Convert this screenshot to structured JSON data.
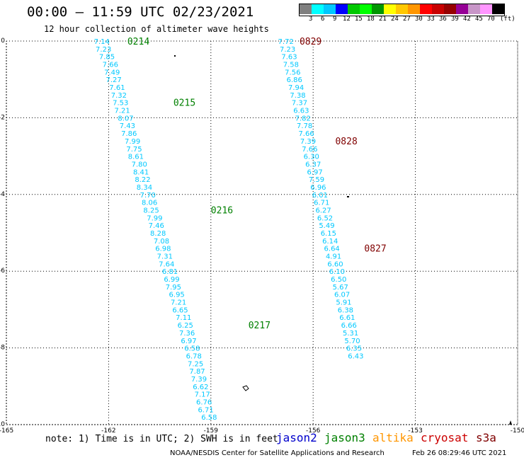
{
  "header": {
    "title": "00:00 – 11:59 UTC 02/23/2021",
    "subtitle": "12 hour collection of altimeter wave heights"
  },
  "scale": {
    "unit": "(ft)",
    "labels": [
      "3",
      "6",
      "9",
      "12",
      "15",
      "18",
      "21",
      "24",
      "27",
      "30",
      "33",
      "36",
      "39",
      "42",
      "45",
      "70"
    ],
    "colors": [
      "#808080",
      "#00ffff",
      "#00c8ff",
      "#0000ff",
      "#00c800",
      "#00ff00",
      "#009600",
      "#ffff00",
      "#ffc800",
      "#ff9600",
      "#ff0000",
      "#c80000",
      "#960000",
      "#960096",
      "#c896c8",
      "#ff96ff",
      "#000000"
    ]
  },
  "axes": {
    "x_ticks": [
      "-165",
      "-162",
      "-159",
      "-156",
      "-153",
      "-150"
    ],
    "y_ticks": [
      "0",
      "-2",
      "-4",
      "-6",
      "-8",
      "-10"
    ]
  },
  "chart_data": {
    "type": "map-track",
    "x_range": [
      -165,
      -150
    ],
    "y_range": [
      -10,
      0
    ],
    "track_color": "#00c8ff",
    "tracks": [
      {
        "label_color": "#008000",
        "points": [
          {
            "lon": -162.2,
            "lat": 0.0,
            "v": "7.14"
          },
          {
            "lon": -162.15,
            "lat": -0.2,
            "v": "7.23"
          },
          {
            "lon": -162.05,
            "lat": -0.4,
            "v": "7.85"
          },
          {
            "lon": -161.95,
            "lat": -0.6,
            "v": "7.66"
          },
          {
            "lon": -161.9,
            "lat": -0.8,
            "v": "7.49"
          },
          {
            "lon": -161.85,
            "lat": -1.0,
            "v": "7.27"
          },
          {
            "lon": -161.75,
            "lat": -1.2,
            "v": "7.61"
          },
          {
            "lon": -161.7,
            "lat": -1.4,
            "v": "7.32"
          },
          {
            "lon": -161.65,
            "lat": -1.6,
            "v": "7.53"
          },
          {
            "lon": -161.6,
            "lat": -1.8,
            "v": "7.21"
          },
          {
            "lon": -161.5,
            "lat": -2.0,
            "v": "8.07"
          },
          {
            "lon": -161.45,
            "lat": -2.2,
            "v": "7.43"
          },
          {
            "lon": -161.4,
            "lat": -2.4,
            "v": "7.86"
          },
          {
            "lon": -161.3,
            "lat": -2.6,
            "v": "7.99"
          },
          {
            "lon": -161.25,
            "lat": -2.8,
            "v": "7.75"
          },
          {
            "lon": -161.2,
            "lat": -3.0,
            "v": "8.61"
          },
          {
            "lon": -161.1,
            "lat": -3.2,
            "v": "7.80"
          },
          {
            "lon": -161.05,
            "lat": -3.4,
            "v": "8.41"
          },
          {
            "lon": -161.0,
            "lat": -3.6,
            "v": "8.22"
          },
          {
            "lon": -160.95,
            "lat": -3.8,
            "v": "8.34"
          },
          {
            "lon": -160.85,
            "lat": -4.0,
            "v": "7.70"
          },
          {
            "lon": -160.8,
            "lat": -4.2,
            "v": "8.06"
          },
          {
            "lon": -160.75,
            "lat": -4.4,
            "v": "8.25"
          },
          {
            "lon": -160.65,
            "lat": -4.6,
            "v": "7.99"
          },
          {
            "lon": -160.6,
            "lat": -4.8,
            "v": "7.46"
          },
          {
            "lon": -160.55,
            "lat": -5.0,
            "v": "8.28"
          },
          {
            "lon": -160.45,
            "lat": -5.2,
            "v": "7.08"
          },
          {
            "lon": -160.4,
            "lat": -5.4,
            "v": "6.98"
          },
          {
            "lon": -160.35,
            "lat": -5.6,
            "v": "7.31"
          },
          {
            "lon": -160.3,
            "lat": -5.8,
            "v": "7.64"
          },
          {
            "lon": -160.2,
            "lat": -6.0,
            "v": "6.81"
          },
          {
            "lon": -160.15,
            "lat": -6.2,
            "v": "6.99"
          },
          {
            "lon": -160.1,
            "lat": -6.4,
            "v": "7.95"
          },
          {
            "lon": -160.0,
            "lat": -6.6,
            "v": "6.95"
          },
          {
            "lon": -159.95,
            "lat": -6.8,
            "v": "7.21"
          },
          {
            "lon": -159.9,
            "lat": -7.0,
            "v": "6.65"
          },
          {
            "lon": -159.8,
            "lat": -7.2,
            "v": "7.11"
          },
          {
            "lon": -159.75,
            "lat": -7.4,
            "v": "6.25"
          },
          {
            "lon": -159.7,
            "lat": -7.6,
            "v": "7.36"
          },
          {
            "lon": -159.65,
            "lat": -7.8,
            "v": "6.97"
          },
          {
            "lon": -159.55,
            "lat": -8.0,
            "v": "6.58"
          },
          {
            "lon": -159.5,
            "lat": -8.2,
            "v": "6.78"
          },
          {
            "lon": -159.45,
            "lat": -8.4,
            "v": "7.25"
          },
          {
            "lon": -159.4,
            "lat": -8.6,
            "v": "7.87"
          },
          {
            "lon": -159.35,
            "lat": -8.8,
            "v": "7.39"
          },
          {
            "lon": -159.3,
            "lat": -9.0,
            "v": "6.62"
          },
          {
            "lon": -159.25,
            "lat": -9.2,
            "v": "7.17"
          },
          {
            "lon": -159.2,
            "lat": -9.4,
            "v": "6.76"
          },
          {
            "lon": -159.15,
            "lat": -9.6,
            "v": "6.71"
          },
          {
            "lon": -159.05,
            "lat": -9.8,
            "v": "6.58"
          }
        ],
        "times": [
          {
            "lon": -161.45,
            "lat": 0.0,
            "t": "0214"
          },
          {
            "lon": -160.1,
            "lat": -1.6,
            "t": "0215"
          },
          {
            "lon": -159.0,
            "lat": -4.4,
            "t": "0216"
          },
          {
            "lon": -157.9,
            "lat": -7.4,
            "t": "0217"
          }
        ]
      },
      {
        "label_color": "#800000",
        "points": [
          {
            "lon": -156.8,
            "lat": 0.0,
            "v": "7.72"
          },
          {
            "lon": -156.75,
            "lat": -0.2,
            "v": "7.23"
          },
          {
            "lon": -156.7,
            "lat": -0.4,
            "v": "7.63"
          },
          {
            "lon": -156.65,
            "lat": -0.6,
            "v": "7.58"
          },
          {
            "lon": -156.6,
            "lat": -0.8,
            "v": "7.56"
          },
          {
            "lon": -156.55,
            "lat": -1.0,
            "v": "6.86"
          },
          {
            "lon": -156.5,
            "lat": -1.2,
            "v": "7.94"
          },
          {
            "lon": -156.45,
            "lat": -1.4,
            "v": "7.38"
          },
          {
            "lon": -156.4,
            "lat": -1.6,
            "v": "7.37"
          },
          {
            "lon": -156.35,
            "lat": -1.8,
            "v": "6.63"
          },
          {
            "lon": -156.3,
            "lat": -2.0,
            "v": "7.82"
          },
          {
            "lon": -156.25,
            "lat": -2.2,
            "v": "7.78"
          },
          {
            "lon": -156.2,
            "lat": -2.4,
            "v": "7.66"
          },
          {
            "lon": -156.15,
            "lat": -2.6,
            "v": "7.39"
          },
          {
            "lon": -156.1,
            "lat": -2.8,
            "v": "7.66"
          },
          {
            "lon": -156.05,
            "lat": -3.0,
            "v": "6.30"
          },
          {
            "lon": -156.0,
            "lat": -3.2,
            "v": "6.37"
          },
          {
            "lon": -155.95,
            "lat": -3.4,
            "v": "6.97"
          },
          {
            "lon": -155.9,
            "lat": -3.6,
            "v": "7.59"
          },
          {
            "lon": -155.85,
            "lat": -3.8,
            "v": "6.96"
          },
          {
            "lon": -155.8,
            "lat": -4.0,
            "v": "6.01"
          },
          {
            "lon": -155.75,
            "lat": -4.2,
            "v": "6.71"
          },
          {
            "lon": -155.7,
            "lat": -4.4,
            "v": "6.27"
          },
          {
            "lon": -155.65,
            "lat": -4.6,
            "v": "6.52"
          },
          {
            "lon": -155.6,
            "lat": -4.8,
            "v": "5.49"
          },
          {
            "lon": -155.55,
            "lat": -5.0,
            "v": "6.15"
          },
          {
            "lon": -155.5,
            "lat": -5.2,
            "v": "6.14"
          },
          {
            "lon": -155.45,
            "lat": -5.4,
            "v": "6.64"
          },
          {
            "lon": -155.4,
            "lat": -5.6,
            "v": "4.91"
          },
          {
            "lon": -155.35,
            "lat": -5.8,
            "v": "6.60"
          },
          {
            "lon": -155.3,
            "lat": -6.0,
            "v": "6.10"
          },
          {
            "lon": -155.25,
            "lat": -6.2,
            "v": "6.50"
          },
          {
            "lon": -155.2,
            "lat": -6.4,
            "v": "5.67"
          },
          {
            "lon": -155.15,
            "lat": -6.6,
            "v": "6.07"
          },
          {
            "lon": -155.1,
            "lat": -6.8,
            "v": "5.91"
          },
          {
            "lon": -155.05,
            "lat": -7.0,
            "v": "6.38"
          },
          {
            "lon": -155.0,
            "lat": -7.2,
            "v": "6.61"
          },
          {
            "lon": -154.95,
            "lat": -7.4,
            "v": "6.66"
          },
          {
            "lon": -154.9,
            "lat": -7.6,
            "v": "5.31"
          },
          {
            "lon": -154.85,
            "lat": -7.8,
            "v": "5.70"
          },
          {
            "lon": -154.8,
            "lat": -8.0,
            "v": "6.35"
          },
          {
            "lon": -154.75,
            "lat": -8.2,
            "v": "6.43"
          }
        ],
        "times": [
          {
            "lon": -156.4,
            "lat": 0.0,
            "t": "0829"
          },
          {
            "lon": -155.35,
            "lat": -2.6,
            "t": "0828"
          },
          {
            "lon": -154.5,
            "lat": -5.4,
            "t": "0827"
          }
        ]
      }
    ]
  },
  "footer": {
    "note": "note: 1) Time is in UTC; 2) SWH is in feet",
    "credit": "NOAA/NESDIS Center for Satellite Applications and Research",
    "generated": "Feb 26 08:29:46 UTC 2021",
    "satellites": [
      {
        "name": "jason2",
        "color": "#0000cc"
      },
      {
        "name": "jason3",
        "color": "#008000"
      },
      {
        "name": "altika",
        "color": "#ff9600"
      },
      {
        "name": "cryosat",
        "color": "#cc0000"
      },
      {
        "name": "s3a",
        "color": "#800000"
      }
    ]
  }
}
